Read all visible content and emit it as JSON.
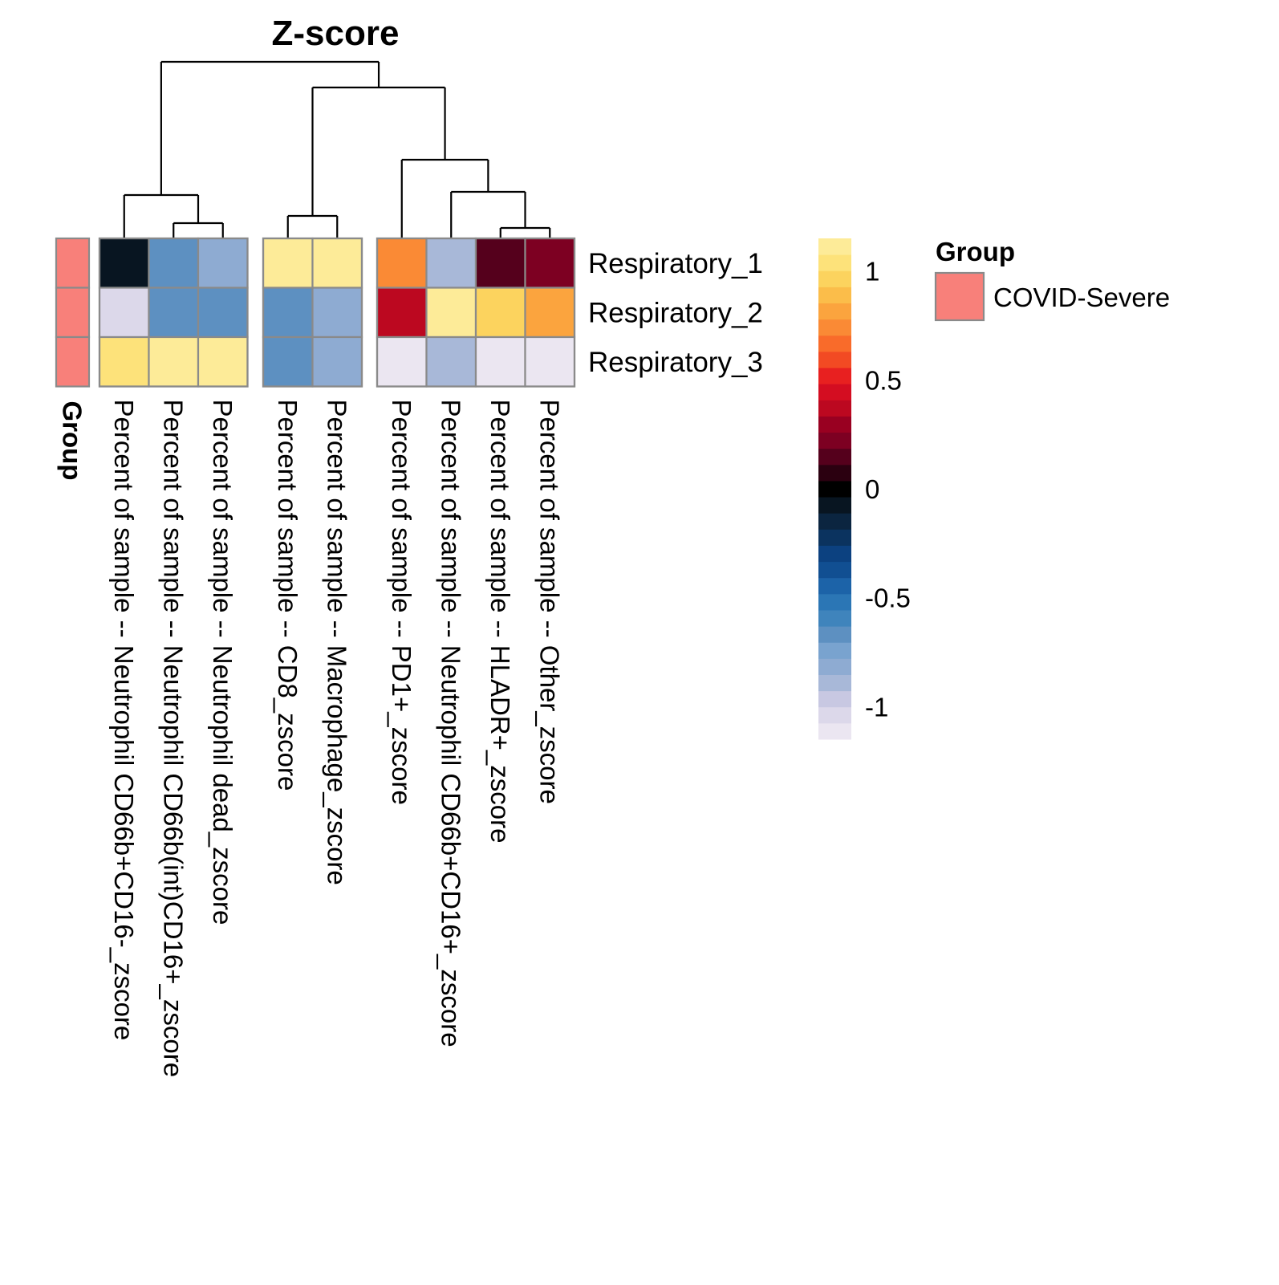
{
  "chart_data": {
    "type": "heatmap",
    "title": "Z-score",
    "rows": [
      "Respiratory_1",
      "Respiratory_2",
      "Respiratory_3"
    ],
    "columns": [
      "Percent of sample -- Neutrophil CD66b+CD16-_zscore",
      "Percent of sample -- Neutrophil CD66b(int)CD16+_zscore",
      "Percent of sample -- Neutrophil dead_zscore",
      "Percent of sample -- CD8_zscore",
      "Percent of sample -- Macrophage_zscore",
      "Percent of sample -- PD1+_zscore",
      "Percent of sample -- Neutrophil CD66b+CD16+_zscore",
      "Percent of sample -- HLADR+_zscore",
      "Percent of sample -- Other_zscore"
    ],
    "column_groups": [
      [
        0,
        1,
        2
      ],
      [
        3,
        4
      ],
      [
        5,
        6,
        7,
        8
      ]
    ],
    "values": [
      [
        -0.05,
        -0.65,
        -0.8,
        1.1,
        1.1,
        0.75,
        -0.9,
        0.12,
        0.25
      ],
      [
        -1.05,
        -0.7,
        -0.65,
        -0.65,
        -0.8,
        0.35,
        1.1,
        0.95,
        0.85
      ],
      [
        1.05,
        1.1,
        1.1,
        -0.65,
        -0.85,
        -1.15,
        -0.9,
        -1.1,
        -1.15
      ]
    ],
    "color_scale": {
      "min": -1.15,
      "max": 1.15,
      "breaks": [
        -1,
        -0.5,
        0,
        0.5,
        1
      ],
      "break_labels": [
        "-1",
        "-0.5",
        "0",
        "0.5",
        "1"
      ],
      "colors": [
        "#ebe6f1",
        "#dcd8ea",
        "#c8c8e2",
        "#a8b8d8",
        "#8eabd2",
        "#79a3cf",
        "#5d90c1",
        "#3f84bc",
        "#2b76b5",
        "#1c63a8",
        "#114f92",
        "#0c4180",
        "#0b335f",
        "#0b2540",
        "#081521",
        "#000000",
        "#2b0010",
        "#55001c",
        "#7d0022",
        "#990021",
        "#bc0820",
        "#d40d21",
        "#e82020",
        "#f24a23",
        "#f96b2a",
        "#fa8a35",
        "#fba43e",
        "#fbbd4a",
        "#fcd35e",
        "#fde27a",
        "#fdeb98"
      ]
    },
    "annotation": {
      "name": "Group",
      "values": [
        "COVID-Severe",
        "COVID-Severe",
        "COVID-Severe"
      ],
      "legend_title": "Group",
      "legend_items": [
        {
          "label": "COVID-Severe",
          "color": "#f8807a"
        }
      ]
    },
    "column_dendrogram": true,
    "row_dendrogram": false
  }
}
